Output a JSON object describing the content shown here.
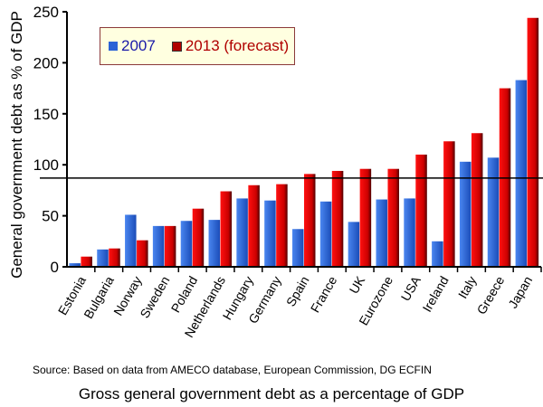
{
  "chart_data": {
    "type": "bar",
    "title": "Gross general government debt as a percentage of GDP",
    "source": "Source: Based on data from AMECO database, European Commission, DG ECFIN",
    "ylabel": "General government debt as % of GDP",
    "ylim": [
      0,
      250
    ],
    "yticks": [
      0,
      50,
      100,
      150,
      200,
      250
    ],
    "grid": false,
    "legend_position": "top-left",
    "reference_line": 87,
    "categories": [
      "Estonia",
      "Bulgaria",
      "Norway",
      "Sweden",
      "Poland",
      "Netherlands",
      "Hungary",
      "Germany",
      "Spain",
      "France",
      "UK",
      "Eurozone",
      "USA",
      "Ireland",
      "Italy",
      "Greece",
      "Japan"
    ],
    "series": [
      {
        "name": "2007",
        "color": "#2a62d6",
        "values": [
          3.5,
          17,
          51,
          40,
          45,
          46,
          67,
          65,
          37,
          64,
          44,
          66,
          67,
          25,
          103,
          107,
          183
        ]
      },
      {
        "name": "2013 (forecast)",
        "color": "#d40000",
        "values": [
          10,
          18,
          26,
          40,
          57,
          74,
          80,
          81,
          91,
          94,
          96,
          96,
          110,
          123,
          131,
          175,
          244
        ]
      }
    ]
  }
}
